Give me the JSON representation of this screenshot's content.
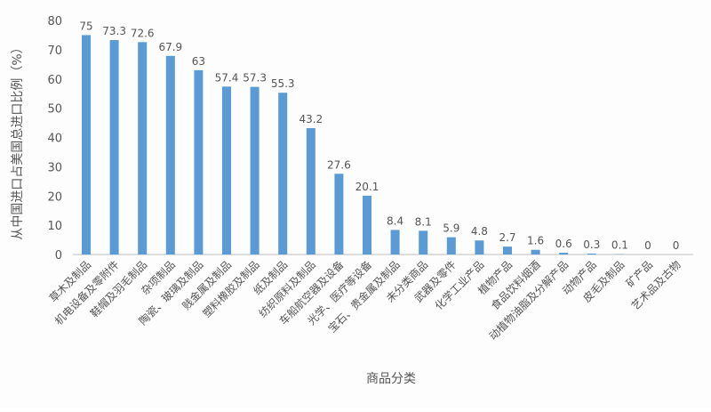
{
  "chart_data": {
    "type": "bar",
    "xlabel": "商品分类",
    "ylabel": "从中国进口占美国总进口比例（%）",
    "ylim": [
      0,
      80
    ],
    "yticks": [
      0,
      10,
      20,
      30,
      40,
      50,
      60,
      70,
      80
    ],
    "grid": false,
    "bar_color": "#5b9bd5",
    "categories": [
      "草木及制品",
      "机电设备及零附件",
      "鞋帽及羽毛制品",
      "杂项制品",
      "陶瓷、玻璃及制品",
      "贱金属及制品",
      "塑料橡胶及制品",
      "纸及制品",
      "纺织原料及制品",
      "车船航空器及设备",
      "光学、医疗等设备",
      "宝石、贵金属及制品",
      "未分类商品",
      "武器及零件",
      "化学工业产品",
      "植物产品",
      "食品饮料烟酒",
      "动植物油脂及分解产品",
      "动物产品",
      "皮毛及制品",
      "矿产品",
      "艺术品及古物"
    ],
    "values": [
      75,
      73.3,
      72.6,
      67.9,
      63,
      57.4,
      57.3,
      55.3,
      43.2,
      27.6,
      20.1,
      8.4,
      8.1,
      5.9,
      4.8,
      2.7,
      1.6,
      0.6,
      0.3,
      0.1,
      0,
      0
    ]
  }
}
